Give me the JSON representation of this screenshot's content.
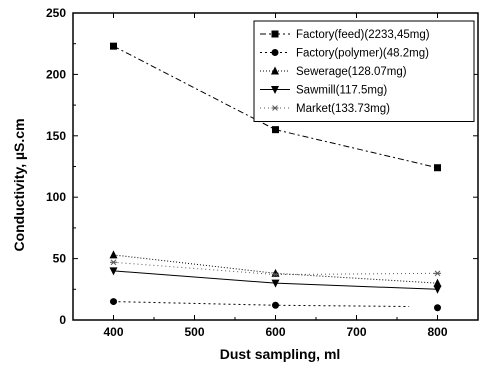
{
  "chart_data": {
    "type": "line",
    "title": "",
    "xlabel": "Dust sampling, ml",
    "ylabel": "Conductivity, µS.cm",
    "xlim": [
      350,
      850
    ],
    "ylim": [
      0,
      250
    ],
    "xticks": [
      400,
      500,
      600,
      700,
      800
    ],
    "yticks": [
      0,
      50,
      100,
      150,
      200,
      250
    ],
    "grid": false,
    "legend_placement": "top-right",
    "series": [
      {
        "name": "Factory(feed)(2233,45mg)",
        "marker": "square",
        "dash": "6,3,2,3",
        "color": "#000000",
        "points": [
          [
            400,
            223
          ],
          [
            600,
            155
          ],
          [
            800,
            124
          ]
        ]
      },
      {
        "name": "Factory(polymer)(48.2mg)",
        "marker": "circle",
        "dash": "2,3",
        "color": "#000000",
        "points": [
          [
            400,
            15
          ],
          [
            600,
            12
          ],
          [
            800,
            10
          ]
        ],
        "line_points": [
          [
            400,
            15
          ],
          [
            600,
            12
          ],
          [
            765,
            11
          ]
        ]
      },
      {
        "name": "Sewerage(128.07mg)",
        "marker": "triangle-up",
        "dash": "1,2",
        "color": "#000000",
        "points": [
          [
            400,
            53
          ],
          [
            600,
            38
          ],
          [
            800,
            30
          ]
        ]
      },
      {
        "name": "Sawmill(117.5mg)",
        "marker": "triangle-down",
        "dash": "",
        "color": "#000000",
        "points": [
          [
            400,
            40
          ],
          [
            600,
            30
          ],
          [
            800,
            25
          ]
        ]
      },
      {
        "name": "Market(133.73mg)",
        "marker": "star",
        "dash": "1,3",
        "color": "#555555",
        "points": [
          [
            400,
            47
          ],
          [
            600,
            37
          ],
          [
            800,
            38
          ]
        ]
      }
    ]
  }
}
